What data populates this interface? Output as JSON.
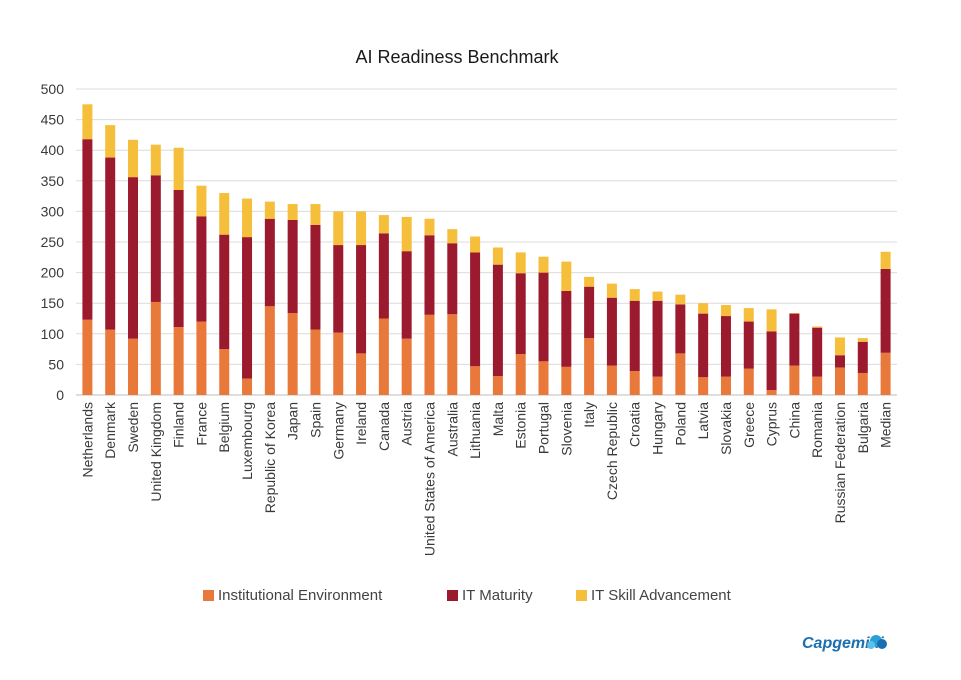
{
  "chart_data": {
    "type": "bar",
    "stacked": true,
    "title": "AI Readiness Benchmark",
    "ylim": [
      0,
      500
    ],
    "yticks": [
      0,
      50,
      100,
      150,
      200,
      250,
      300,
      350,
      400,
      450,
      500
    ],
    "grid": true,
    "legend_position": "bottom",
    "categories": [
      "Netherlands",
      "Denmark",
      "Sweden",
      "United Kingdom",
      "Finland",
      "France",
      "Belgium",
      "Luxembourg",
      "Republic of Korea",
      "Japan",
      "Spain",
      "Germany",
      "Ireland",
      "Canada",
      "Austria",
      "United States of America",
      "Australia",
      "Lithuania",
      "Malta",
      "Estonia",
      "Portugal",
      "Slovenia",
      "Italy",
      "Czech Republic",
      "Croatia",
      "Hungary",
      "Poland",
      "Latvia",
      "Slovakia",
      "Greece",
      "Cyprus",
      "China",
      "Romania",
      "Russian Federation",
      "Bulgaria",
      "Median"
    ],
    "series": [
      {
        "name": "Institutional Environment",
        "color": "#e8793a",
        "values": [
          123,
          107,
          92,
          152,
          111,
          120,
          75,
          27,
          145,
          134,
          107,
          102,
          68,
          125,
          92,
          131,
          132,
          47,
          31,
          67,
          55,
          46,
          93,
          48,
          39,
          30,
          68,
          29,
          30,
          43,
          8,
          48,
          30,
          45,
          36,
          69
        ]
      },
      {
        "name": "IT Maturity",
        "color": "#9c1a2e",
        "values": [
          295,
          281,
          264,
          207,
          224,
          172,
          187,
          231,
          143,
          152,
          171,
          143,
          177,
          139,
          143,
          130,
          116,
          186,
          182,
          132,
          145,
          124,
          84,
          111,
          115,
          124,
          80,
          104,
          99,
          77,
          96,
          85,
          80,
          20,
          51,
          137
        ]
      },
      {
        "name": "IT Skill Advancement",
        "color": "#f5bf3c",
        "values": [
          57,
          53,
          61,
          50,
          69,
          50,
          68,
          63,
          28,
          26,
          34,
          55,
          55,
          30,
          56,
          27,
          23,
          26,
          28,
          34,
          26,
          48,
          16,
          23,
          19,
          15,
          16,
          17,
          18,
          22,
          36,
          1,
          2,
          29,
          6,
          28
        ]
      }
    ]
  },
  "logo": {
    "text": "Capgemini"
  }
}
